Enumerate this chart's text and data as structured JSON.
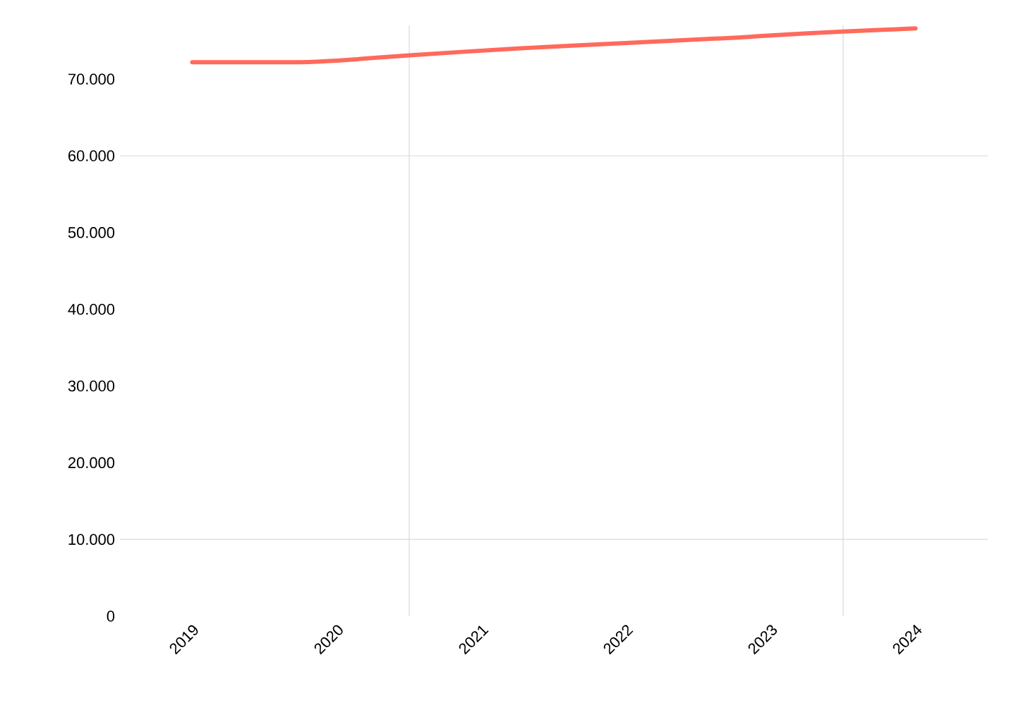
{
  "chart_data": {
    "type": "line",
    "x": [
      "2019-01",
      "2019-10",
      "2020-01",
      "2020-07",
      "2021-04",
      "2022-01",
      "2022-10",
      "2023-01",
      "2023-07",
      "2024-01"
    ],
    "series": [
      {
        "color": "#ff6a5c",
        "values": [
          72200,
          72200,
          72400,
          73100,
          74000,
          74700,
          75400,
          75700,
          76200,
          76600
        ]
      }
    ],
    "xlim": [
      "2018-07",
      "2024-07"
    ],
    "xticks": [
      "2019",
      "2020",
      "2021",
      "2022",
      "2023",
      "2024"
    ],
    "ylim": [
      0,
      77000
    ],
    "yticks": [
      {
        "value": 0,
        "label": "0"
      },
      {
        "value": 10000,
        "label": "10.000"
      },
      {
        "value": 20000,
        "label": "20.000"
      },
      {
        "value": 30000,
        "label": "30.000"
      },
      {
        "value": 40000,
        "label": "40.000"
      },
      {
        "value": 50000,
        "label": "50.000"
      },
      {
        "value": 60000,
        "label": "60.000"
      },
      {
        "value": 70000,
        "label": "70.000"
      }
    ],
    "ref_lines": [
      {
        "axis": "y",
        "value": 10000,
        "color": "#d9d9d9"
      },
      {
        "axis": "y",
        "value": 60000,
        "color": "#d9d9d9"
      },
      {
        "axis": "x",
        "value": "2020-07",
        "color": "#d9d9d9"
      },
      {
        "axis": "x",
        "value": "2023-07",
        "color": "#d9d9d9"
      }
    ],
    "grid": false,
    "marker": "none",
    "line_style": "solid"
  }
}
